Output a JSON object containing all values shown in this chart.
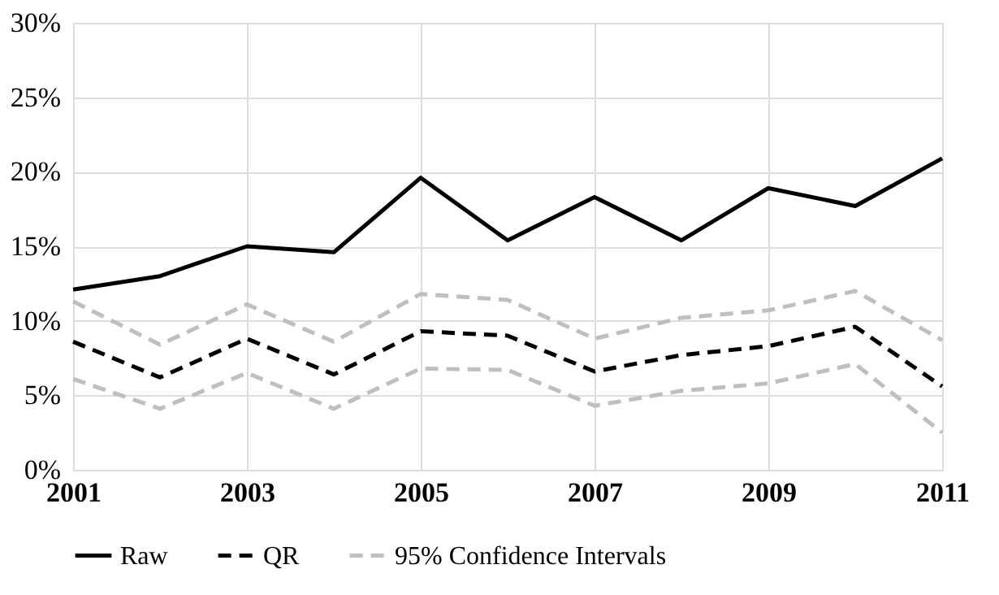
{
  "chart_data": {
    "type": "line",
    "x": [
      2001,
      2002,
      2003,
      2004,
      2005,
      2006,
      2007,
      2008,
      2009,
      2010,
      2011
    ],
    "series": [
      {
        "name": "Raw",
        "color": "#000000",
        "line_style": "solid",
        "values": [
          12.1,
          13.0,
          15.0,
          14.6,
          19.6,
          15.4,
          18.3,
          15.4,
          18.9,
          17.7,
          20.9
        ]
      },
      {
        "name": "QR",
        "color": "#000000",
        "line_style": "dashed",
        "values": [
          8.6,
          6.2,
          8.8,
          6.4,
          9.3,
          9.0,
          6.6,
          7.7,
          8.3,
          9.6,
          5.6
        ]
      },
      {
        "name": "95% Confidence Intervals",
        "color": "#bfbfbf",
        "line_style": "dashed",
        "values": [
          11.3,
          8.4,
          11.1,
          8.6,
          11.8,
          11.4,
          8.8,
          10.2,
          10.7,
          12.0,
          8.7
        ]
      },
      {
        "color": "#bfbfbf",
        "line_style": "dashed",
        "values": [
          6.1,
          4.1,
          6.5,
          4.1,
          6.8,
          6.7,
          4.3,
          5.3,
          5.8,
          7.1,
          2.5
        ]
      }
    ],
    "xlim": [
      2001,
      2011
    ],
    "xticks": [
      2001,
      2003,
      2005,
      2007,
      2009,
      2011
    ],
    "ylim": [
      0,
      30
    ],
    "yticks": [
      {
        "value": 0,
        "label": "0%"
      },
      {
        "value": 5,
        "label": "5%"
      },
      {
        "value": 10,
        "label": "10%"
      },
      {
        "value": 15,
        "label": "15%"
      },
      {
        "value": 20,
        "label": "20%"
      },
      {
        "value": 25,
        "label": "25%"
      },
      {
        "value": 30,
        "label": "30%"
      }
    ],
    "grid": true,
    "legend": "bottom",
    "marker": "none"
  }
}
